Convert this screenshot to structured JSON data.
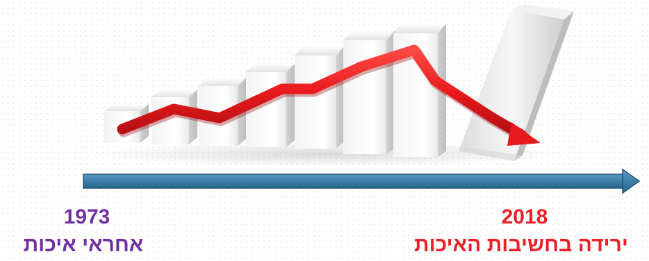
{
  "timeline": {
    "start": {
      "year": "1973",
      "caption": "אחראי איכות"
    },
    "end": {
      "year": "2018",
      "caption": "ירידה בחשיבות האיכות"
    }
  },
  "illustration": {
    "bar_levels": [
      1,
      2,
      3,
      4,
      5,
      6,
      6.5
    ],
    "falling_bar_icon": "tilted-bar",
    "trend_arrow_icon": "red-trend-arrow",
    "timeline_arrow_icon": "blue-arrow"
  },
  "colors": {
    "trend_arrow": "#e8191c",
    "timeline_arrow": "#3e7fa8",
    "timeline_arrow_edge": "#1f5576",
    "start_text": "#7030a0",
    "end_text": "#e8212a"
  }
}
